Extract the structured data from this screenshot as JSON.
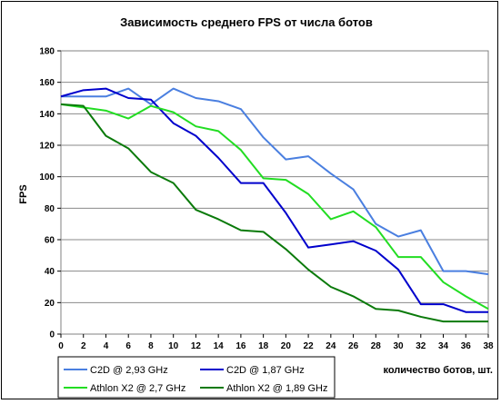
{
  "chart_data": {
    "type": "line",
    "title": "Зависимость среднего FPS от числа ботов",
    "xlabel": "количество ботов, шт.",
    "ylabel": "FPS",
    "xlim": [
      0,
      38
    ],
    "ylim": [
      0,
      180
    ],
    "x_ticks": [
      "0",
      "2",
      "4",
      "6",
      "8",
      "10",
      "12",
      "14",
      "16",
      "18",
      "20",
      "22",
      "24",
      "26",
      "28",
      "30",
      "32",
      "34",
      "36",
      "38"
    ],
    "y_ticks": [
      "0",
      "20",
      "40",
      "60",
      "80",
      "100",
      "120",
      "140",
      "160",
      "180"
    ],
    "grid": "horizontal",
    "legend_position": "bottom",
    "x": [
      0,
      2,
      4,
      6,
      8,
      10,
      12,
      14,
      16,
      18,
      20,
      22,
      24,
      26,
      28,
      30,
      32,
      34,
      36,
      38
    ],
    "series": [
      {
        "name": "C2D @ 2,93 GHz",
        "color": "#4a7fe0",
        "values": [
          151,
          151,
          151,
          156,
          146,
          156,
          150,
          148,
          143,
          125,
          111,
          113,
          102,
          92,
          70,
          62,
          66,
          40,
          40,
          38
        ]
      },
      {
        "name": "C2D @ 1,87 GHz",
        "color": "#0000cc",
        "values": [
          151,
          155,
          156,
          150,
          149,
          134,
          126,
          112,
          96,
          96,
          77,
          55,
          57,
          59,
          53,
          41,
          19,
          19,
          14,
          14
        ]
      },
      {
        "name": "Athlon X2 @ 2,7 GHz",
        "color": "#22dd22",
        "values": [
          146,
          144,
          142,
          137,
          145,
          141,
          132,
          129,
          117,
          99,
          98,
          89,
          73,
          78,
          68,
          49,
          49,
          33,
          24,
          16
        ]
      },
      {
        "name": "Athlon X2 @ 1,89 GHz",
        "color": "#0a7a0a",
        "values": [
          146,
          145,
          126,
          118,
          103,
          96,
          79,
          73,
          66,
          65,
          54,
          41,
          30,
          24,
          16,
          15,
          11,
          8,
          8,
          8
        ]
      }
    ]
  }
}
